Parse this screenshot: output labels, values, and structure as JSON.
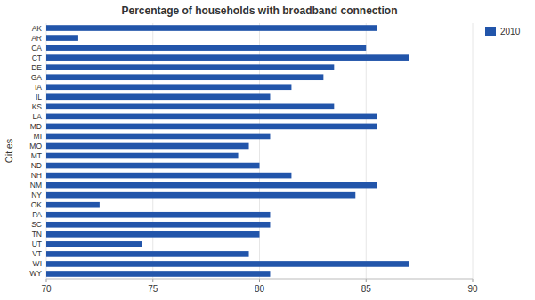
{
  "chart_data": {
    "type": "bar",
    "orientation": "horizontal",
    "title": "Percentage of households with broadband connection",
    "ylabel": "Cities",
    "categories": [
      "AK",
      "AR",
      "CA",
      "CT",
      "DE",
      "GA",
      "IA",
      "IL",
      "KS",
      "LA",
      "MD",
      "MI",
      "MO",
      "MT",
      "ND",
      "NH",
      "NM",
      "NY",
      "OK",
      "PA",
      "SC",
      "TN",
      "UT",
      "VT",
      "WI",
      "WY"
    ],
    "series": [
      {
        "name": "2010",
        "color": "#2255aa",
        "values": [
          85.5,
          71.5,
          85.0,
          87.0,
          83.5,
          83.0,
          81.5,
          80.5,
          83.5,
          85.5,
          85.5,
          80.5,
          79.5,
          79.0,
          80.0,
          81.5,
          85.5,
          84.5,
          72.5,
          80.5,
          80.5,
          80.0,
          74.5,
          79.5,
          87.0,
          80.5
        ]
      }
    ],
    "xlim": [
      70,
      90
    ],
    "xticks": [
      70,
      75,
      80,
      85,
      90
    ],
    "grid": true,
    "legend": "right"
  }
}
